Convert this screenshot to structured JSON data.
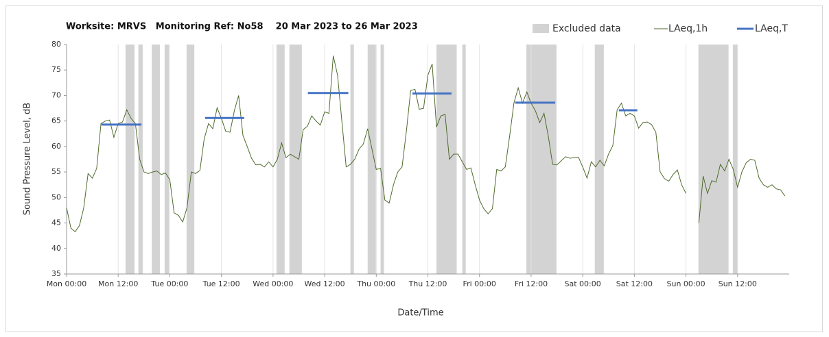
{
  "chart_data": {
    "type": "line",
    "title": "Worksite: MRVS   Monitoring Ref: No58    20 Mar 2023 to 26 Mar 2023",
    "xlabel": "Date/Time",
    "ylabel": "Sound Pressure Level, dB",
    "xlim": [
      0,
      168
    ],
    "xticks": [
      {
        "value": 0,
        "label": "Mon 00:00"
      },
      {
        "value": 12,
        "label": "Mon 12:00"
      },
      {
        "value": 24,
        "label": "Tue 00:00"
      },
      {
        "value": 36,
        "label": "Tue 12:00"
      },
      {
        "value": 48,
        "label": "Wed 00:00"
      },
      {
        "value": 60,
        "label": "Wed 12:00"
      },
      {
        "value": 72,
        "label": "Thu 00:00"
      },
      {
        "value": 84,
        "label": "Thu 12:00"
      },
      {
        "value": 96,
        "label": "Fri 00:00"
      },
      {
        "value": 108,
        "label": "Fri 12:00"
      },
      {
        "value": 120,
        "label": "Sat 00:00"
      },
      {
        "value": 132,
        "label": "Sat 12:00"
      },
      {
        "value": 144,
        "label": "Sun 00:00"
      },
      {
        "value": 156,
        "label": "Sun 12:00"
      }
    ],
    "ylim": [
      35,
      80
    ],
    "yticks": [
      35,
      40,
      45,
      50,
      55,
      60,
      65,
      70,
      75,
      80
    ],
    "grid": true,
    "excluded": {
      "name": "Excluded data",
      "color": "#d3d3d3",
      "ranges": [
        [
          13.7,
          15.8
        ],
        [
          16.7,
          17.7
        ],
        [
          19.8,
          21.7
        ],
        [
          22.8,
          23.8
        ],
        [
          27.9,
          29.7
        ],
        [
          48.8,
          50.7
        ],
        [
          51.8,
          54.7
        ],
        [
          66,
          66.8
        ],
        [
          70,
          71.9
        ],
        [
          73,
          73.8
        ],
        [
          86,
          90.7
        ],
        [
          92,
          92.8
        ],
        [
          106.9,
          113.9
        ],
        [
          122.8,
          124.9
        ],
        [
          146.9,
          153.9
        ],
        [
          154.9,
          156
        ]
      ]
    },
    "x": [
      0,
      1,
      2,
      3,
      4,
      5,
      6,
      7,
      8,
      9,
      10,
      11,
      12,
      13,
      14,
      15,
      16,
      17,
      18,
      19,
      20,
      21,
      22,
      23,
      24,
      25,
      26,
      27,
      28,
      29,
      30,
      31,
      32,
      33,
      34,
      35,
      36,
      37,
      38,
      39,
      40,
      41,
      42,
      43,
      44,
      45,
      46,
      47,
      48,
      49,
      50,
      51,
      52,
      53,
      54,
      55,
      56,
      57,
      58,
      59,
      60,
      61,
      62,
      63,
      64,
      65,
      66,
      67,
      68,
      69,
      70,
      71,
      72,
      73,
      74,
      75,
      76,
      77,
      78,
      79,
      80,
      81,
      82,
      83,
      84,
      85,
      86,
      87,
      88,
      89,
      90,
      91,
      92,
      93,
      94,
      95,
      96,
      97,
      98,
      99,
      100,
      101,
      102,
      103,
      104,
      105,
      106,
      107,
      108,
      109,
      110,
      111,
      112,
      113,
      114,
      115,
      116,
      117,
      118,
      119,
      120,
      121,
      122,
      123,
      124,
      125,
      126,
      127,
      128,
      129,
      130,
      131,
      132,
      133,
      134,
      135,
      136,
      137,
      138,
      139,
      140,
      141,
      142,
      143,
      144,
      145,
      146,
      147,
      148,
      149,
      150,
      151,
      152,
      153,
      154,
      155,
      156,
      157,
      158,
      159,
      160,
      161,
      162,
      163,
      164,
      165,
      166,
      167
    ],
    "series": [
      {
        "name": "LAeq,1h",
        "color": "#4e6b2c",
        "values": [
          48,
          44,
          43.3,
          44.5,
          48,
          54.7,
          53.8,
          55.7,
          64.5,
          65,
          65.2,
          61.8,
          64.5,
          64.8,
          67.2,
          65.5,
          64.5,
          57.5,
          55,
          54.7,
          55,
          55.2,
          54.5,
          54.8,
          53.5,
          47,
          46.5,
          45.2,
          48,
          55,
          54.7,
          55.3,
          61.5,
          64.5,
          63.5,
          67.6,
          65.5,
          63,
          62.8,
          67,
          70,
          62.2,
          60,
          57.7,
          56.4,
          56.5,
          56,
          57,
          56,
          57.5,
          60.7,
          57.8,
          58.5,
          58,
          57.5,
          63.3,
          64,
          66,
          65,
          64.2,
          66.8,
          66.5,
          77.8,
          74,
          65,
          56,
          56.5,
          57.5,
          59.5,
          60.5,
          63.5,
          59.5,
          55.5,
          55.7,
          49.5,
          48.9,
          52.5,
          55,
          56,
          63,
          71,
          71.2,
          67.3,
          67.5,
          74,
          76.2,
          63.8,
          66,
          66.3,
          57.5,
          58.5,
          58.5,
          57,
          55.5,
          55.8,
          52.5,
          49.5,
          47.8,
          46.8,
          47.8,
          55.5,
          55.2,
          56,
          62,
          68.5,
          71.5,
          68.5,
          70.7,
          68.5,
          67,
          64.7,
          66.5,
          62,
          56.5,
          56.4,
          57.2,
          58,
          57.7,
          57.8,
          57.9,
          56,
          53.8,
          57,
          56,
          57.3,
          56.2,
          58.5,
          60.2,
          67.2,
          68.5,
          66,
          66.5,
          66,
          63.6,
          64.7,
          64.8,
          64.3,
          62.8,
          55,
          53.7,
          53.2,
          54.5,
          55.4,
          52.5,
          50.8,
          null,
          null,
          45,
          54.2,
          50.8,
          53.3,
          53,
          56.5,
          55.2,
          57.5,
          55.5,
          52,
          55,
          56.8,
          57.5,
          57.3,
          53.8,
          52.5,
          52,
          52.5,
          51.7,
          51.5,
          50.3
        ]
      }
    ],
    "periods": {
      "name": "LAeq,T",
      "color": "#4472c4",
      "segments": [
        {
          "start": 8.1,
          "end": 17.4,
          "value": 64.3
        },
        {
          "start": 32.2,
          "end": 41.3,
          "value": 65.6
        },
        {
          "start": 56.1,
          "end": 65.5,
          "value": 70.5
        },
        {
          "start": 80.4,
          "end": 89.5,
          "value": 70.4
        },
        {
          "start": 104.3,
          "end": 113.6,
          "value": 68.6
        },
        {
          "start": 128.4,
          "end": 132.7,
          "value": 67.1
        }
      ]
    }
  }
}
